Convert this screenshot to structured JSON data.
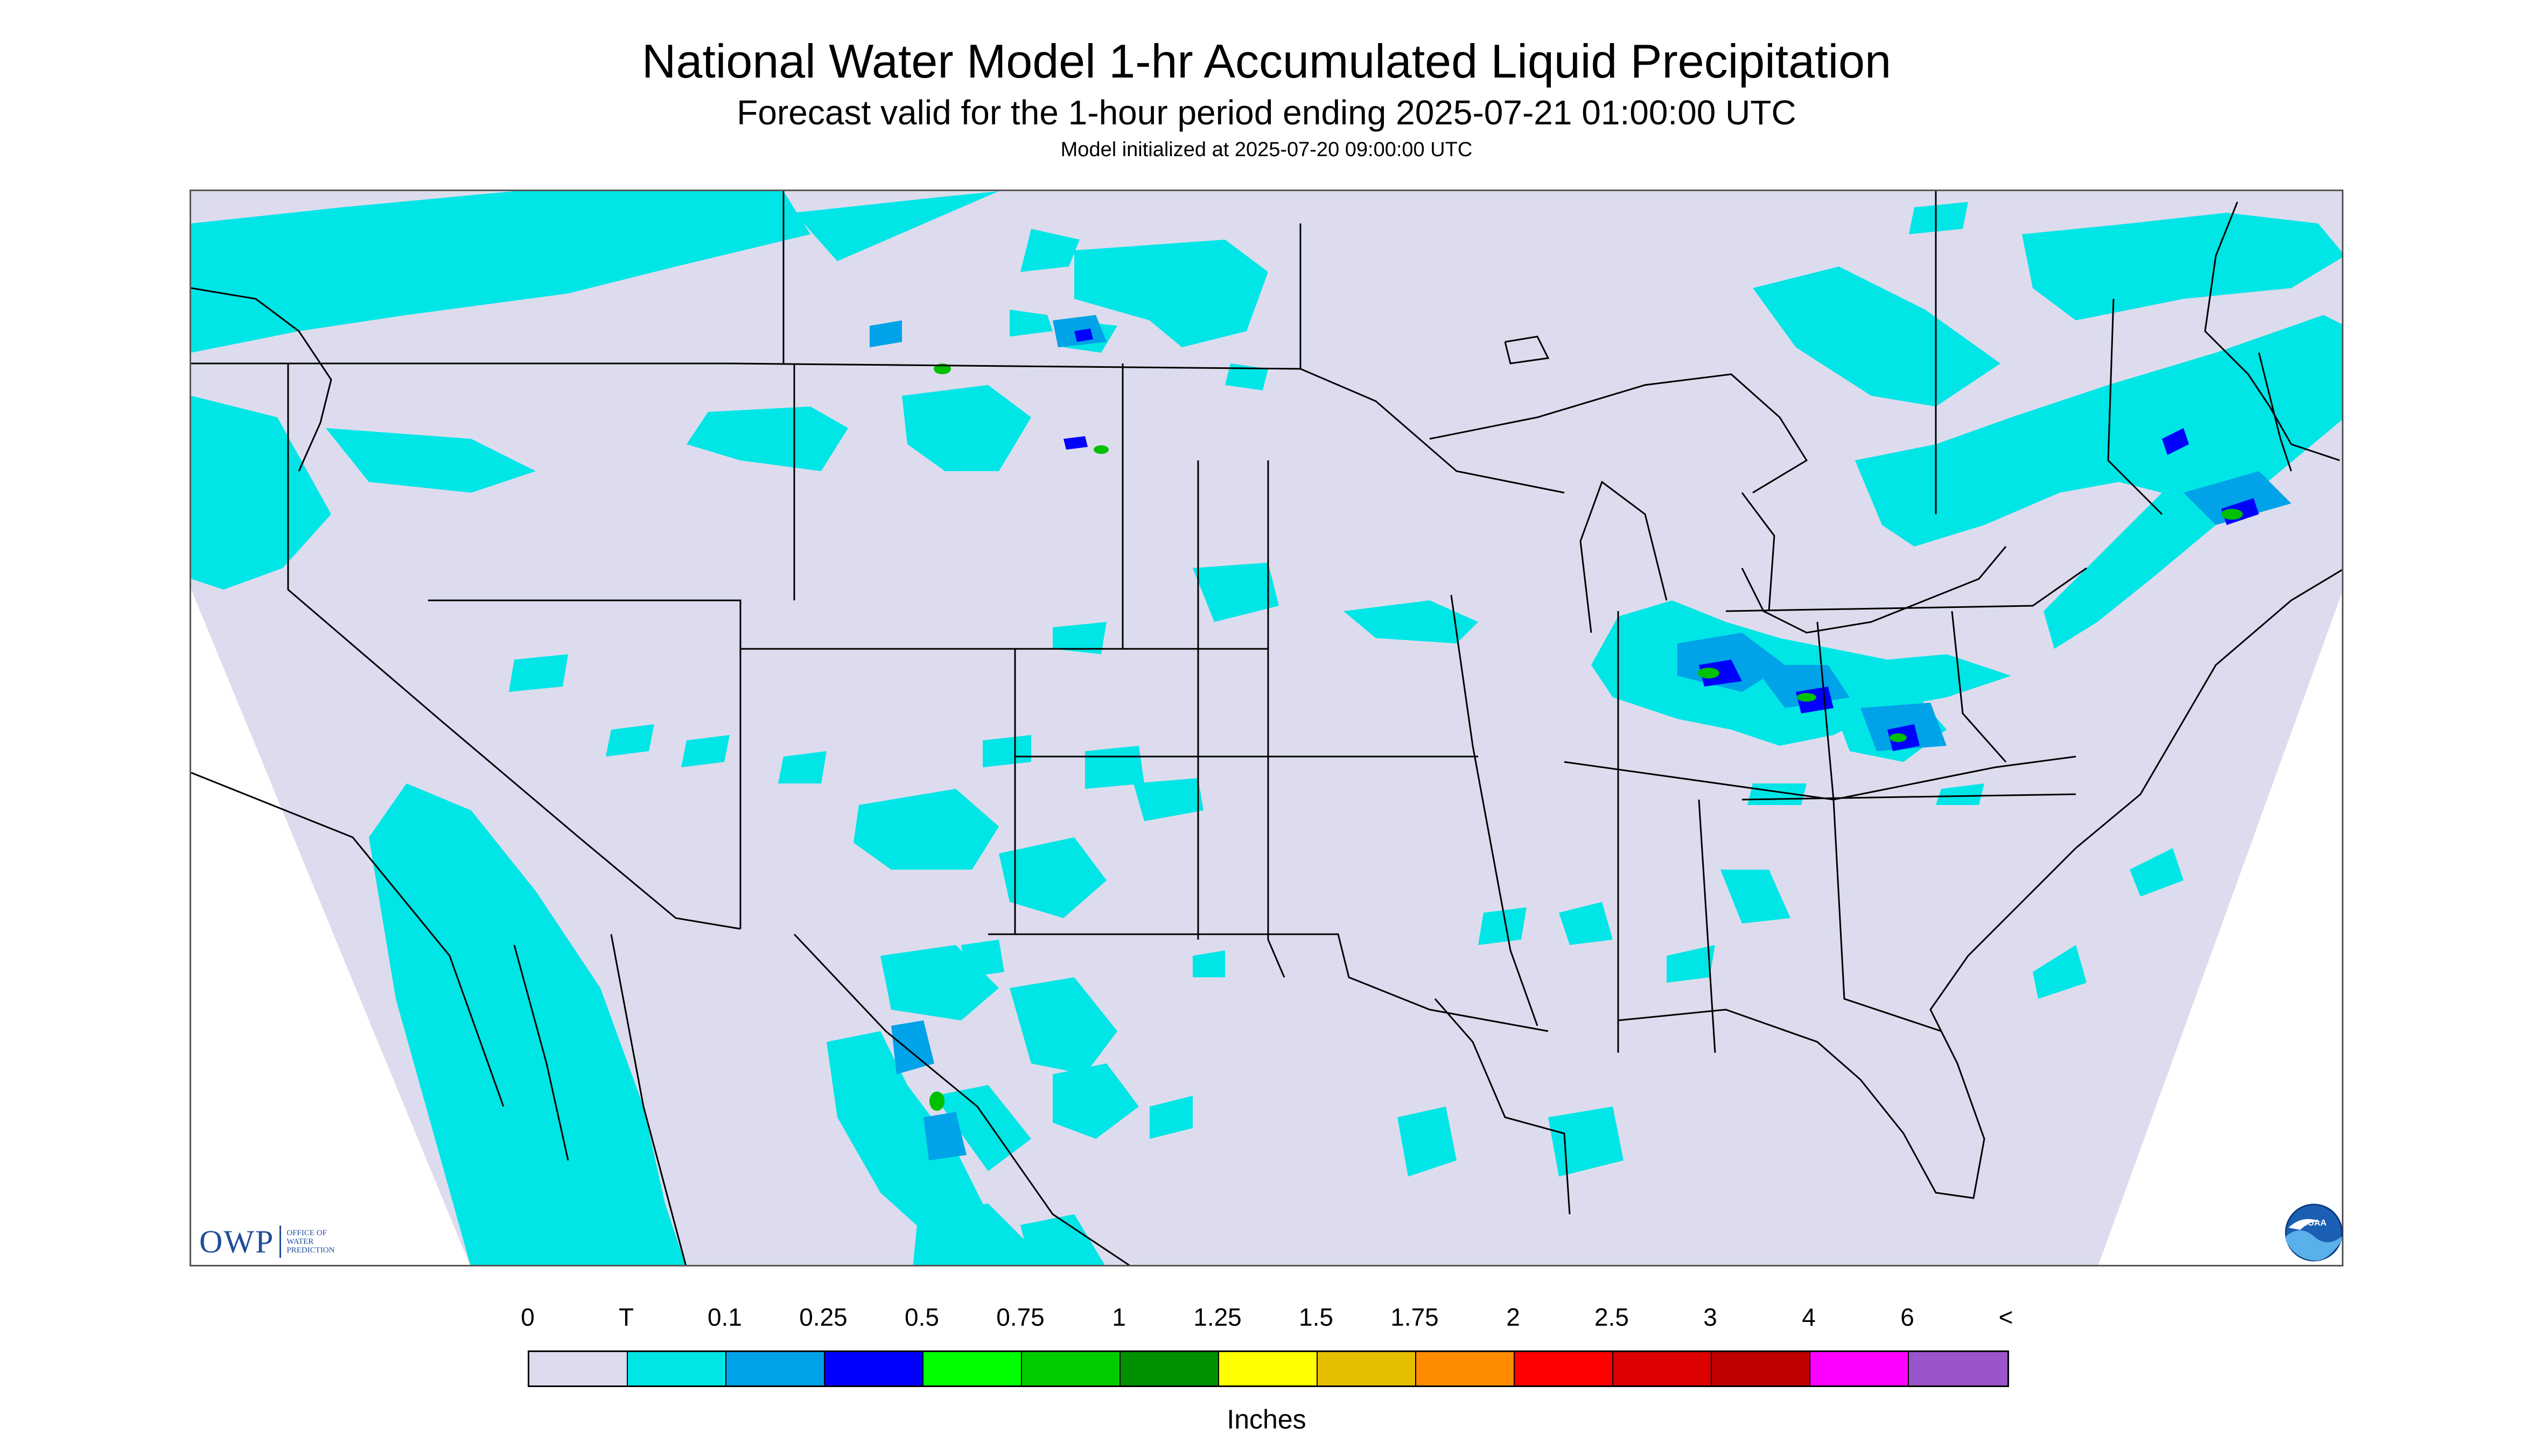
{
  "header": {
    "title": "National Water Model 1-hr Accumulated Liquid Precipitation",
    "subtitle": "Forecast valid for the 1-hour period ending 2025-07-21 01:00:00 UTC",
    "init_note": "Model initialized at 2025-07-20 09:00:00 UTC"
  },
  "logos": {
    "owp_letters": "OWP",
    "owp_line1": "OFFICE OF",
    "owp_line2": "WATER",
    "owp_line3": "PREDICTION",
    "noaa_text": "NOAA"
  },
  "map": {
    "background_color": "#dcdcee",
    "trace_color": "#00e5e5",
    "light_blue_color": "#00a2e8",
    "blue_color": "#0000ff",
    "green_color": "#00c000",
    "outside_color": "#ffffff"
  },
  "legend": {
    "tick_labels": [
      "0",
      "T",
      "0.1",
      "0.25",
      "0.5",
      "0.75",
      "1",
      "1.25",
      "1.5",
      "1.75",
      "2",
      "2.5",
      "3",
      "4",
      "6",
      "<"
    ],
    "colors": [
      "#dcdcee",
      "#00e5e5",
      "#00a2e8",
      "#0000ff",
      "#00ff00",
      "#00cc00",
      "#009100",
      "#ffff00",
      "#e6be00",
      "#ff8c00",
      "#ff0000",
      "#dc0000",
      "#be0000",
      "#ff00ff",
      "#9955c9"
    ],
    "units": "Inches"
  }
}
